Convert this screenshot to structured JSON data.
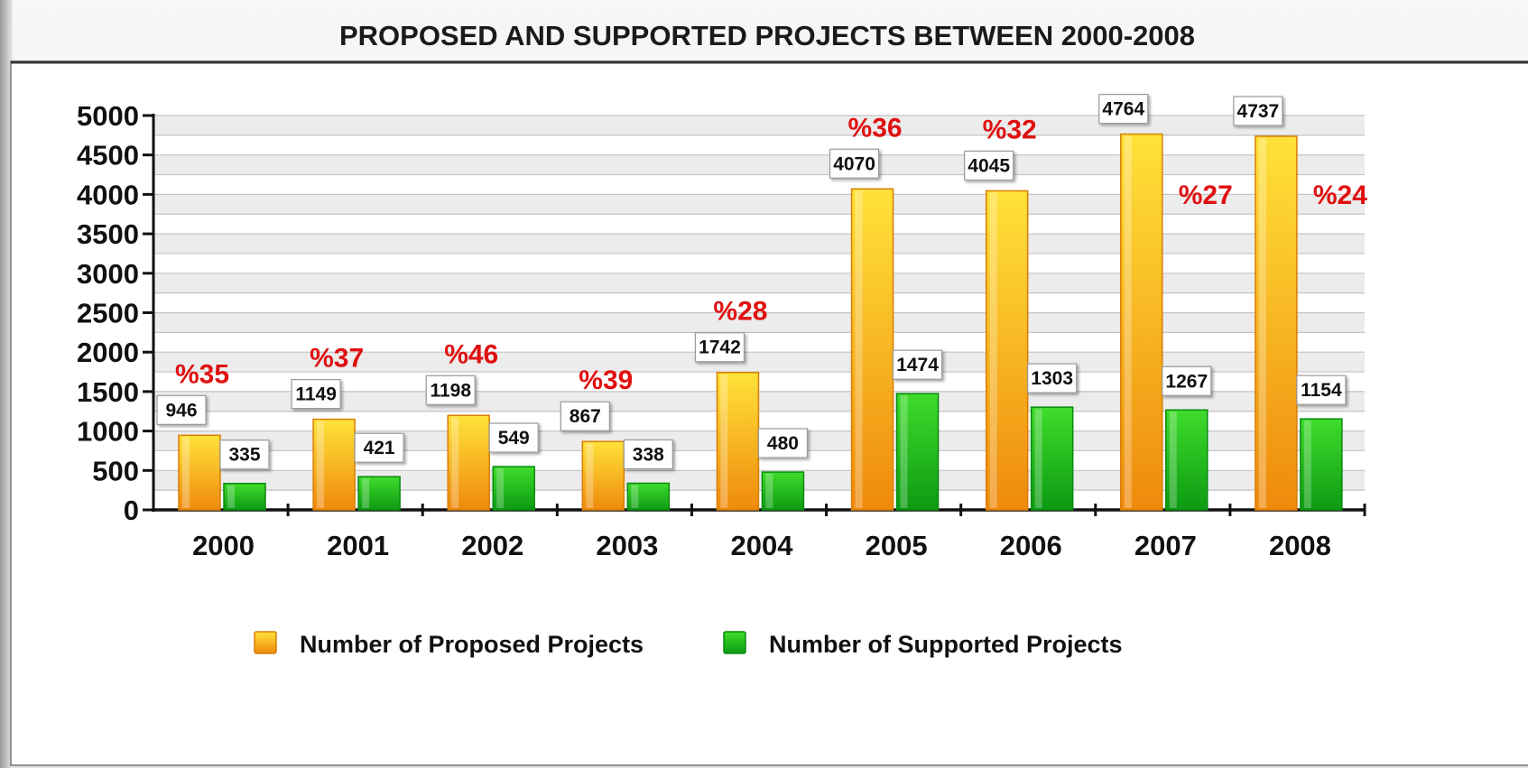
{
  "chart_data": {
    "type": "bar",
    "title": "PROPOSED AND SUPPORTED PROJECTS BETWEEN 2000-2008",
    "categories": [
      "2000",
      "2001",
      "2002",
      "2003",
      "2004",
      "2005",
      "2006",
      "2007",
      "2008"
    ],
    "series": [
      {
        "name": "Number of Proposed Projects",
        "values": [
          946,
          1149,
          1198,
          867,
          1742,
          4070,
          4045,
          4764,
          4737
        ]
      },
      {
        "name": "Number of Supported Projects",
        "values": [
          335,
          421,
          549,
          338,
          480,
          1474,
          1303,
          1267,
          1154
        ]
      }
    ],
    "ratio_labels": [
      "%35",
      "%37",
      "%46",
      "%39",
      "%28",
      "%36",
      "%32",
      "%27",
      "%24"
    ],
    "ylim": [
      0,
      5000
    ],
    "yticks": [
      0,
      500,
      1000,
      1500,
      2000,
      2500,
      3000,
      3500,
      4000,
      4500,
      5000
    ],
    "grid": true,
    "legend_position": "bottom",
    "colors": {
      "proposed_top": "#ffe23a",
      "proposed_bottom": "#ef8a0c",
      "proposed_edge": "#d97e06",
      "supported_top": "#3fdc2c",
      "supported_bottom": "#0c9a12",
      "supported_edge": "#0a8a10",
      "ratio_text": "#e01010",
      "grid_band": "#ececec"
    }
  }
}
